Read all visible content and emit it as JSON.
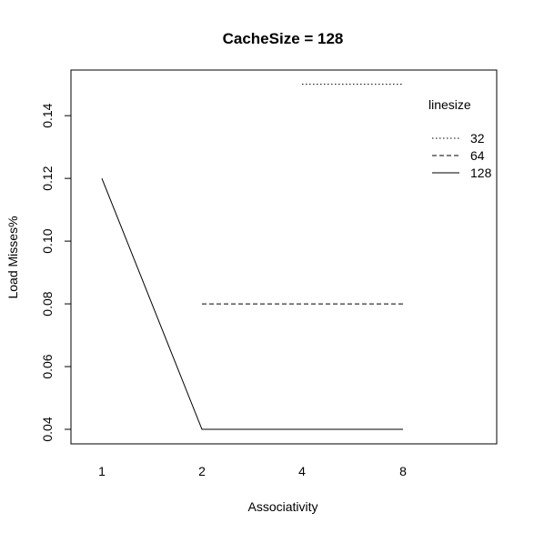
{
  "chart_data": {
    "type": "line",
    "title": "CacheSize = 128",
    "xlabel": "Associativity",
    "ylabel": "Load Misses%",
    "categories": [
      "1",
      "2",
      "4",
      "8"
    ],
    "y_ticks": [
      "0.04",
      "0.06",
      "0.08",
      "0.10",
      "0.12",
      "0.14"
    ],
    "ylim": [
      0.035,
      0.155
    ],
    "legend": {
      "title": "linesize",
      "placement": "top-right"
    },
    "series": [
      {
        "name": "32",
        "style": "dotted",
        "values": [
          null,
          null,
          0.15,
          0.15
        ]
      },
      {
        "name": "64",
        "style": "dashed",
        "values": [
          null,
          0.08,
          0.08,
          0.08
        ]
      },
      {
        "name": "128",
        "style": "solid",
        "values": [
          0.12,
          0.04,
          0.04,
          0.04
        ]
      }
    ],
    "colors": {
      "line": "#000000",
      "background": "#ffffff"
    }
  }
}
